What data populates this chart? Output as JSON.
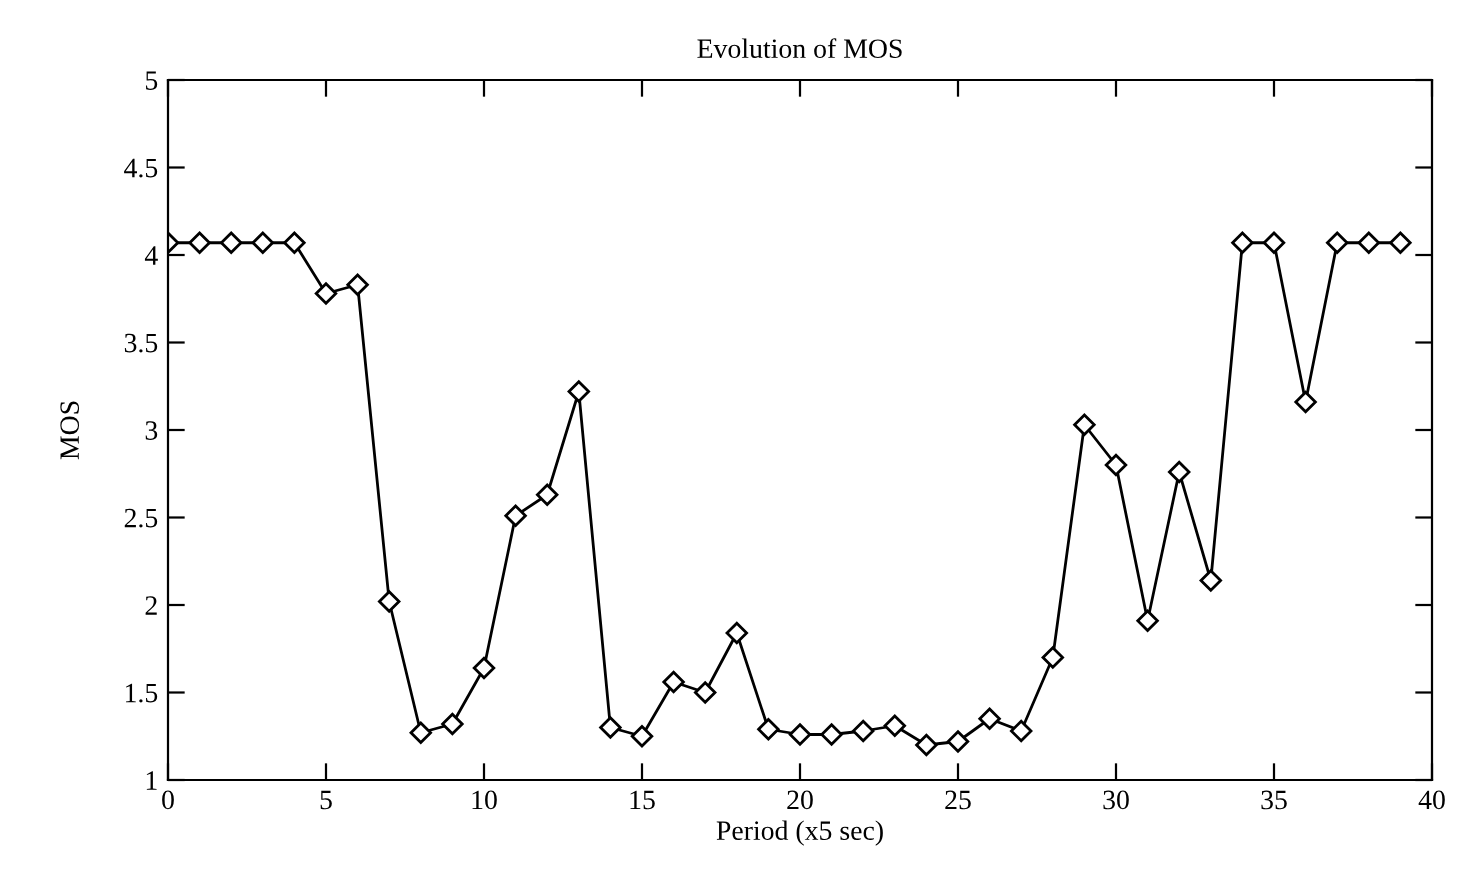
{
  "chart_data": {
    "type": "line",
    "title": "Evolution of MOS",
    "xlabel": "Period (x5 sec)",
    "ylabel": "MOS",
    "x": [
      0,
      1,
      2,
      3,
      4,
      5,
      6,
      7,
      8,
      9,
      10,
      11,
      12,
      13,
      14,
      15,
      16,
      17,
      18,
      19,
      20,
      21,
      22,
      23,
      24,
      25,
      26,
      27,
      28,
      29,
      30,
      31,
      32,
      33,
      34,
      35,
      36,
      37,
      38,
      39
    ],
    "series": [
      {
        "color": "#000000",
        "values": [
          4.07,
          4.07,
          4.07,
          4.07,
          4.07,
          3.78,
          3.83,
          2.02,
          1.27,
          1.32,
          1.64,
          2.51,
          2.63,
          3.22,
          1.3,
          1.25,
          1.56,
          1.5,
          1.84,
          1.29,
          1.26,
          1.26,
          1.28,
          1.31,
          1.2,
          1.22,
          1.35,
          1.28,
          1.7,
          3.03,
          2.8,
          1.91,
          2.76,
          2.14,
          4.07,
          4.07,
          3.16,
          4.07,
          4.07,
          4.07
        ]
      }
    ],
    "xlim": [
      0,
      40
    ],
    "ylim": [
      1,
      5
    ],
    "xticks": [
      0,
      5,
      10,
      15,
      20,
      25,
      30,
      35,
      40
    ],
    "yticks": [
      1,
      1.5,
      2,
      2.5,
      3,
      3.5,
      4,
      4.5,
      5
    ],
    "marker": "diamond",
    "line_style": "solid",
    "grid": false,
    "legend": false
  }
}
